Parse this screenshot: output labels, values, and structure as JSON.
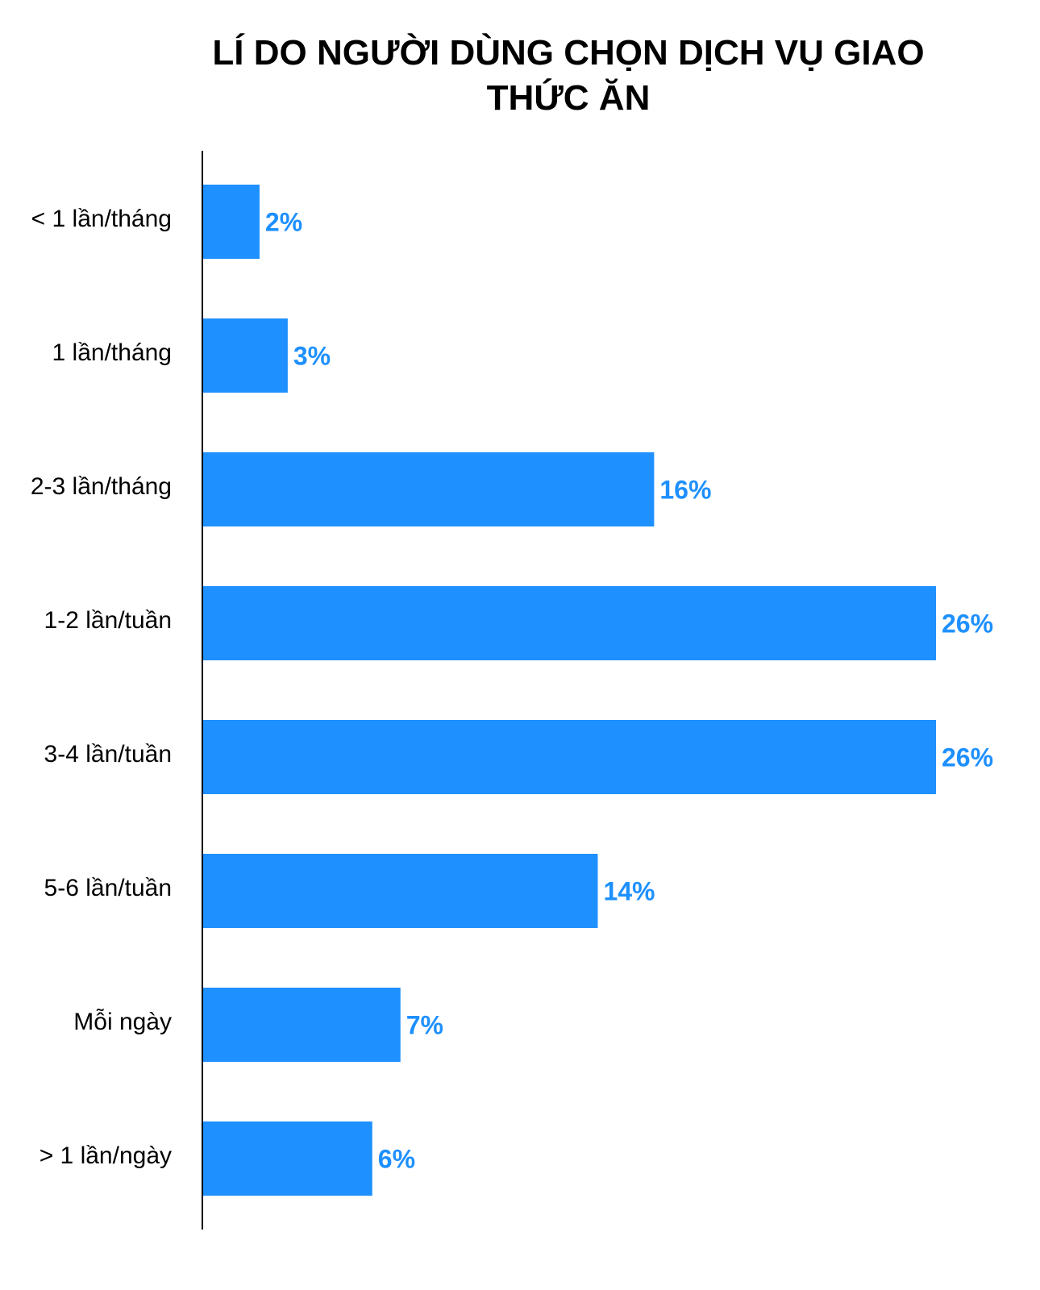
{
  "chart_data": {
    "type": "bar",
    "orientation": "horizontal",
    "title": "LÍ DO NGƯỜI DÙNG CHỌN DỊCH VỤ GIAO THỨC ĂN",
    "categories": [
      "< 1 lần/tháng",
      "1 lần/tháng",
      "2-3 lần/tháng",
      "1-2 lần/tuần",
      "3-4 lần/tuần",
      "5-6 lần/tuần",
      "Mỗi ngày",
      "> 1 lần/ngày"
    ],
    "values": [
      2,
      3,
      16,
      26,
      26,
      14,
      7,
      6
    ],
    "value_labels": [
      "2%",
      "3%",
      "16%",
      "26%",
      "26%",
      "14%",
      "7%",
      "6%"
    ],
    "color": "#1e90ff"
  }
}
